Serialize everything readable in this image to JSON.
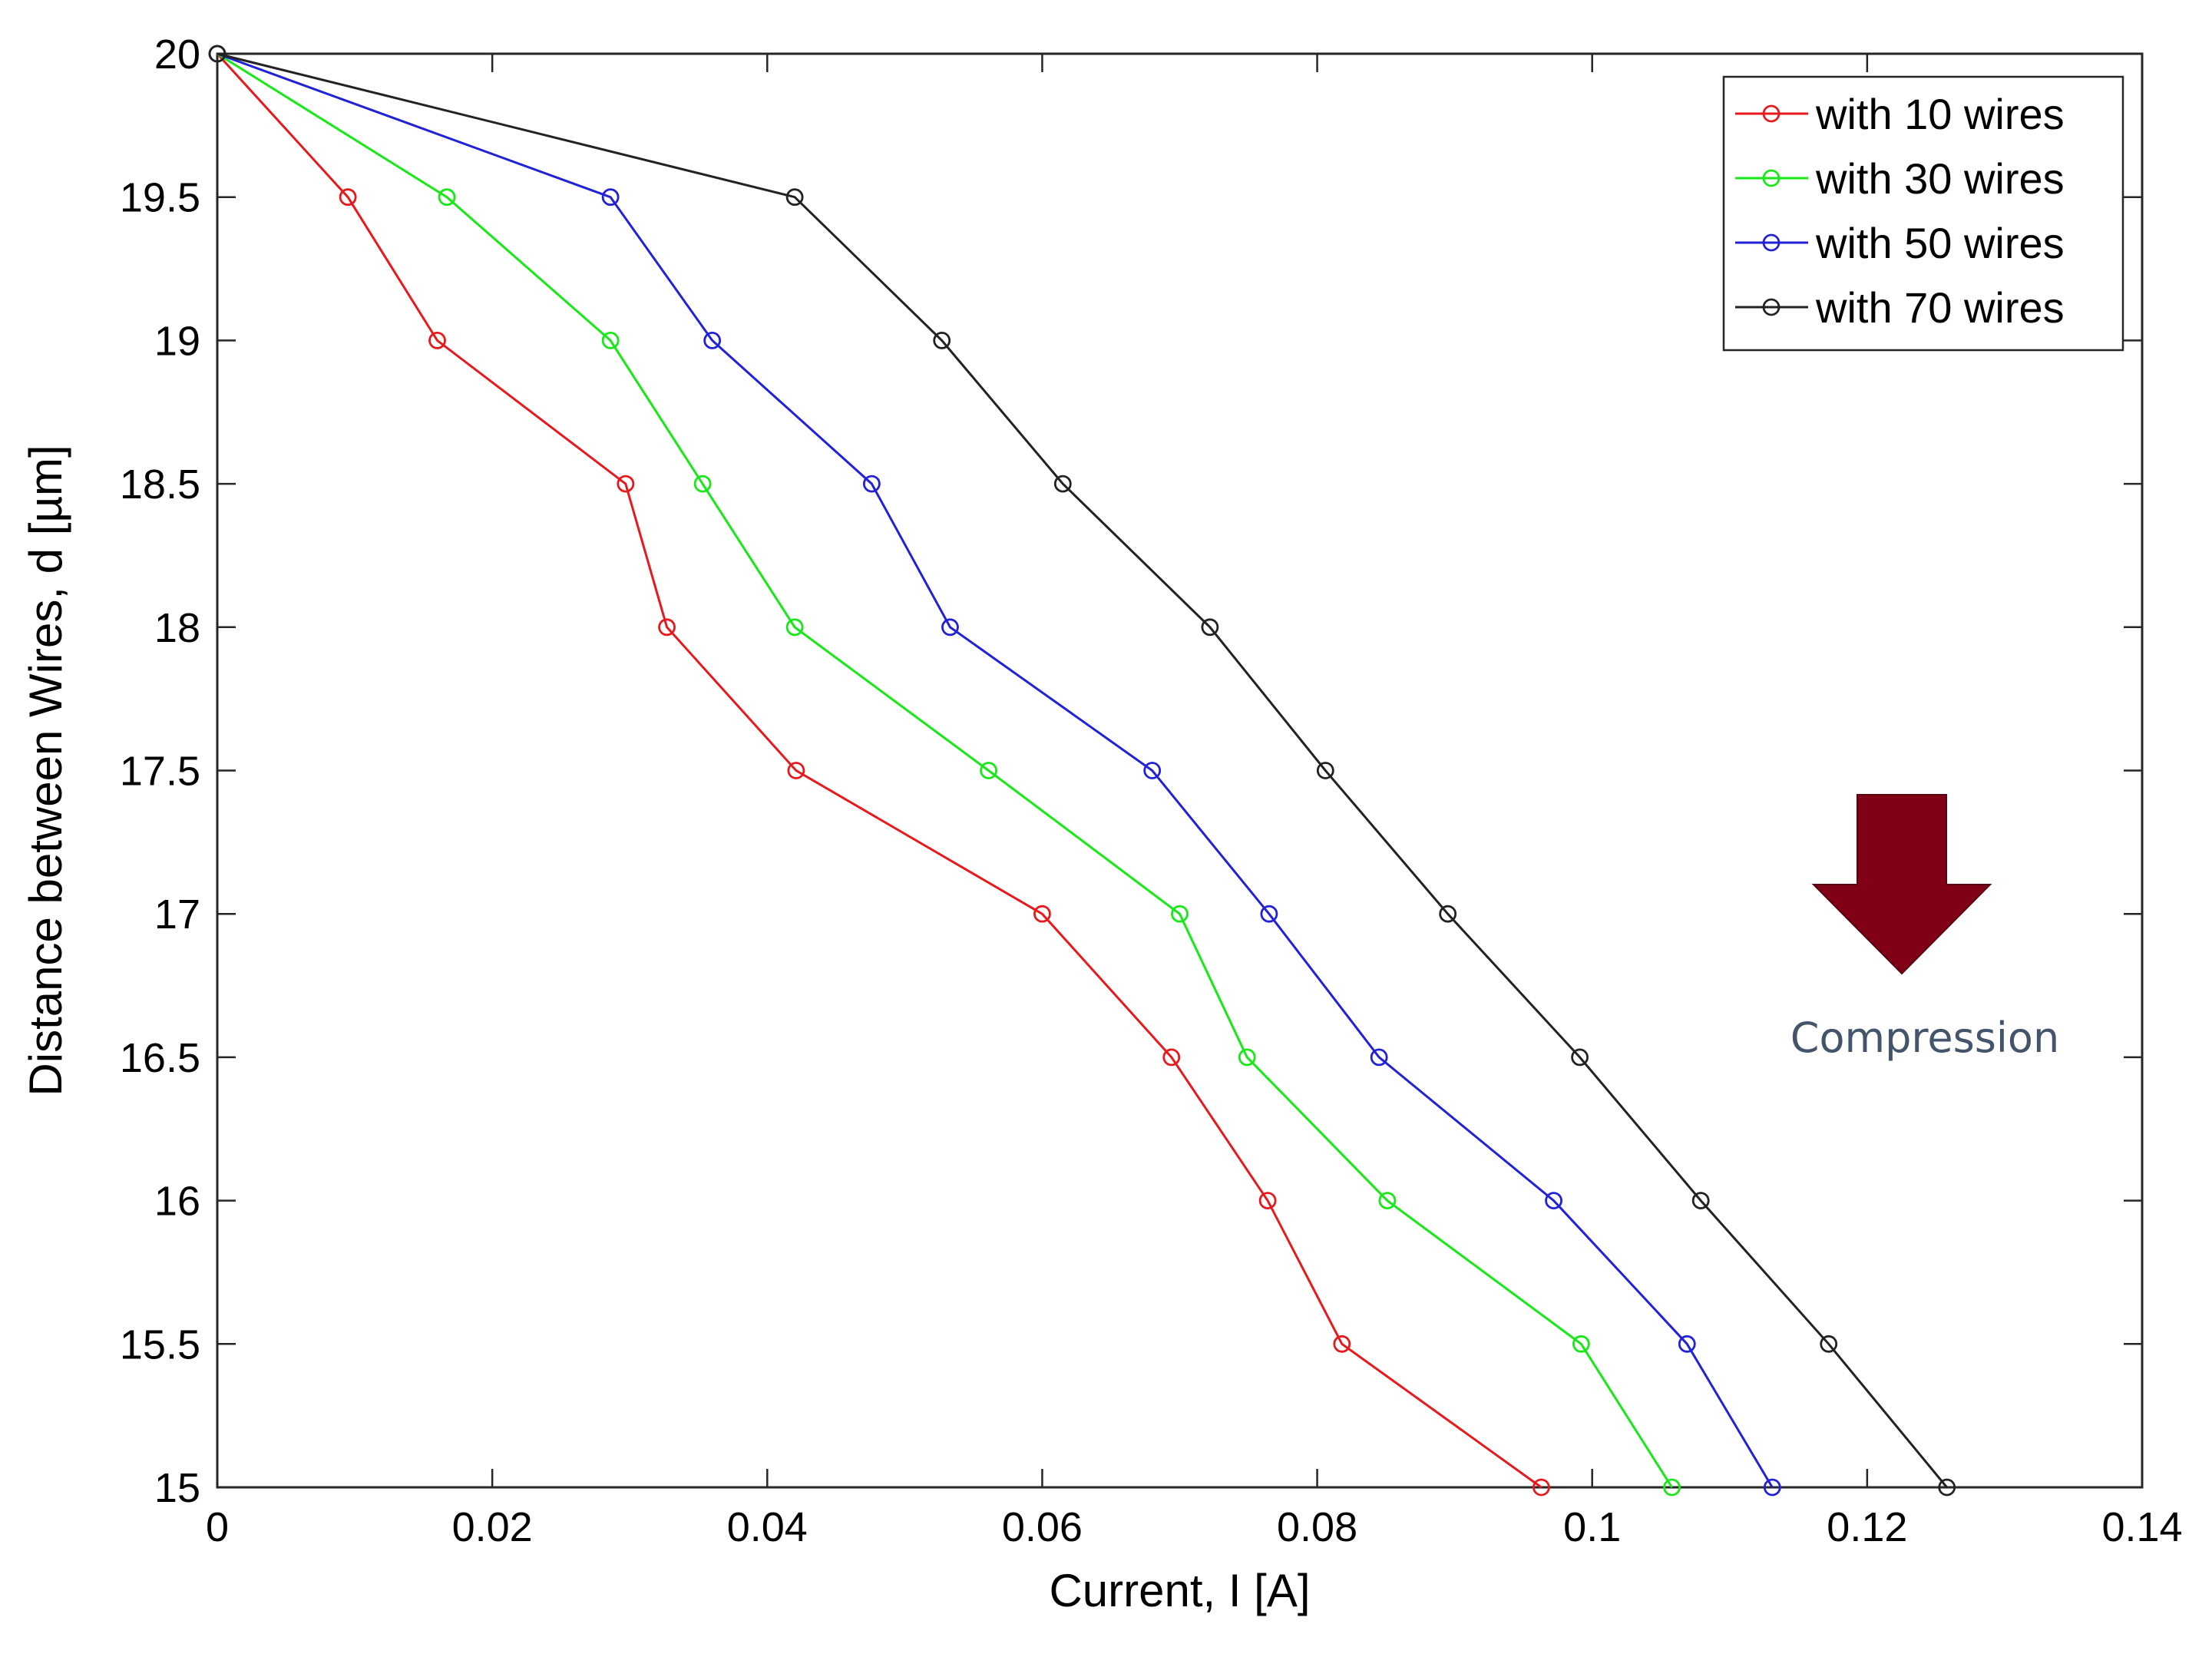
{
  "chart_data": {
    "type": "line",
    "title": "",
    "xlabel": "Current, I [A]",
    "ylabel": "Distance between Wires, d [µm]",
    "xlim": [
      0,
      0.14
    ],
    "ylim": [
      15,
      20
    ],
    "x_ticks": [
      0,
      0.02,
      0.04,
      0.06,
      0.08,
      0.1,
      0.12,
      0.14
    ],
    "x_tick_labels": [
      "0",
      "0.02",
      "0.04",
      "0.06",
      "0.08",
      "0.1",
      "0.12",
      "0.14"
    ],
    "y_ticks": [
      15,
      15.5,
      16,
      16.5,
      17,
      17.5,
      18,
      18.5,
      19,
      19.5,
      20
    ],
    "y_tick_labels": [
      "15",
      "15.5",
      "16",
      "16.5",
      "17",
      "17.5",
      "18",
      "18.5",
      "19",
      "19.5",
      "20"
    ],
    "grid": false,
    "legend_position": "top-right",
    "series": [
      {
        "name": "with 10 wires",
        "color": "#e8191c",
        "points": [
          [
            0,
            20
          ],
          [
            0.0095,
            19.5
          ],
          [
            0.016,
            19
          ],
          [
            0.0297,
            18.5
          ],
          [
            0.0327,
            18
          ],
          [
            0.0421,
            17.5
          ],
          [
            0.06,
            17
          ],
          [
            0.0694,
            16.5
          ],
          [
            0.0764,
            16
          ],
          [
            0.0818,
            15.5
          ],
          [
            0.0963,
            15
          ]
        ]
      },
      {
        "name": "with 30 wires",
        "color": "#18e818",
        "points": [
          [
            0,
            20
          ],
          [
            0.0167,
            19.5
          ],
          [
            0.0286,
            19
          ],
          [
            0.0353,
            18.5
          ],
          [
            0.042,
            18
          ],
          [
            0.0561,
            17.5
          ],
          [
            0.07,
            17
          ],
          [
            0.0749,
            16.5
          ],
          [
            0.0851,
            16
          ],
          [
            0.0992,
            15.5
          ],
          [
            0.1058,
            15
          ]
        ]
      },
      {
        "name": "with 50 wires",
        "color": "#2121d8",
        "points": [
          [
            0,
            20
          ],
          [
            0.0286,
            19.5
          ],
          [
            0.036,
            19
          ],
          [
            0.0476,
            18.5
          ],
          [
            0.0533,
            18
          ],
          [
            0.068,
            17.5
          ],
          [
            0.0765,
            17
          ],
          [
            0.0845,
            16.5
          ],
          [
            0.0972,
            16
          ],
          [
            0.1069,
            15.5
          ],
          [
            0.1131,
            15
          ]
        ]
      },
      {
        "name": "with 70 wires",
        "color": "#222222",
        "points": [
          [
            0,
            20
          ],
          [
            0.042,
            19.5
          ],
          [
            0.0527,
            19
          ],
          [
            0.0615,
            18.5
          ],
          [
            0.0722,
            18
          ],
          [
            0.0806,
            17.5
          ],
          [
            0.0895,
            17
          ],
          [
            0.0991,
            16.5
          ],
          [
            0.1079,
            16
          ],
          [
            0.1172,
            15.5
          ],
          [
            0.1258,
            15
          ]
        ]
      }
    ],
    "annotation": {
      "text": "Compression",
      "arrow_direction": "down",
      "arrow_color": "#800015",
      "text_color": "#44546a"
    }
  }
}
